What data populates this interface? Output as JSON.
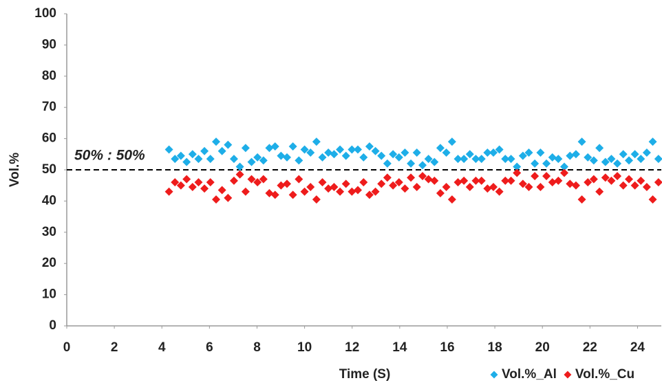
{
  "chart_data": {
    "type": "scatter",
    "xlabel": "Time (S)",
    "ylabel": "Vol.%",
    "annotation": "50% : 50%",
    "reference_line": 50,
    "xlim": [
      0,
      25
    ],
    "xticks": [
      0,
      2,
      4,
      6,
      8,
      10,
      12,
      14,
      16,
      18,
      20,
      22,
      24
    ],
    "ylim": [
      0,
      100
    ],
    "yticks": [
      0,
      10,
      20,
      30,
      40,
      50,
      60,
      70,
      80,
      90,
      100
    ],
    "grid": false,
    "legend": "bottom-right",
    "x": [
      4.3,
      4.55,
      4.8,
      5.04,
      5.29,
      5.54,
      5.79,
      6.04,
      6.28,
      6.53,
      6.78,
      7.03,
      7.28,
      7.52,
      7.77,
      8.02,
      8.27,
      8.52,
      8.76,
      9.01,
      9.26,
      9.51,
      9.76,
      10.0,
      10.25,
      10.5,
      10.75,
      11.0,
      11.24,
      11.49,
      11.74,
      11.99,
      12.24,
      12.48,
      12.73,
      12.98,
      13.23,
      13.48,
      13.72,
      13.97,
      14.22,
      14.47,
      14.72,
      14.96,
      15.21,
      15.46,
      15.71,
      15.96,
      16.2,
      16.45,
      16.7,
      16.95,
      17.2,
      17.44,
      17.69,
      17.94,
      18.19,
      18.44,
      18.68,
      18.93,
      19.18,
      19.43,
      19.68,
      19.92,
      20.17,
      20.42,
      20.67,
      20.92,
      21.16,
      21.41,
      21.66,
      21.91,
      22.16,
      22.4,
      22.65,
      22.9,
      23.15,
      23.4,
      23.64,
      23.89,
      24.14,
      24.39,
      24.64,
      24.88
    ],
    "series": [
      {
        "name": "Vol.%_Al",
        "color": "#1eaee8",
        "values": [
          56.5,
          53.5,
          54.5,
          52.5,
          55,
          53.5,
          56,
          53.5,
          59,
          56,
          58,
          53.5,
          51,
          57,
          52.5,
          54,
          53,
          57,
          57.5,
          54.5,
          54,
          57.5,
          53,
          56.5,
          55.5,
          59,
          54,
          55.5,
          55,
          56.5,
          54.5,
          56.5,
          56.5,
          54,
          57.5,
          56,
          54.5,
          52,
          55,
          54,
          55.5,
          52,
          55.5,
          51.5,
          53.5,
          52.5,
          57,
          55.5,
          59,
          53.5,
          53.5,
          55,
          53.5,
          53.5,
          55.5,
          55.5,
          56.5,
          53.5,
          53.5,
          51,
          54.5,
          55.5,
          52,
          55.5,
          52,
          54,
          53.5,
          51,
          54.5,
          55,
          59,
          54,
          53,
          57,
          52.5,
          53.5,
          52,
          55,
          53,
          55,
          53.5,
          55.5,
          59,
          53.5
        ]
      },
      {
        "name": "Vol.%_Cu",
        "color": "#ee1c1c",
        "values": [
          43,
          46,
          45,
          47,
          44.5,
          46,
          44,
          46,
          40.5,
          43.5,
          41,
          46.5,
          48.5,
          43,
          47,
          46,
          47,
          42.5,
          42,
          45,
          45.5,
          42,
          47,
          43,
          44.5,
          40.5,
          46,
          44,
          44.5,
          43,
          45.5,
          43,
          43.5,
          46,
          42,
          43,
          45.5,
          47.5,
          45,
          46,
          44,
          47.5,
          44.5,
          48,
          47,
          46.5,
          42.5,
          44.5,
          40.5,
          46,
          46.5,
          44.5,
          46.5,
          46.5,
          44,
          44.5,
          43,
          46.5,
          46.5,
          49,
          45.5,
          44.5,
          48,
          44.5,
          48,
          46,
          46.5,
          49,
          45.5,
          45,
          40.5,
          46,
          47,
          43,
          47.5,
          46.5,
          48,
          45,
          47,
          45,
          46.5,
          44.5,
          40.5,
          46
        ]
      }
    ]
  }
}
